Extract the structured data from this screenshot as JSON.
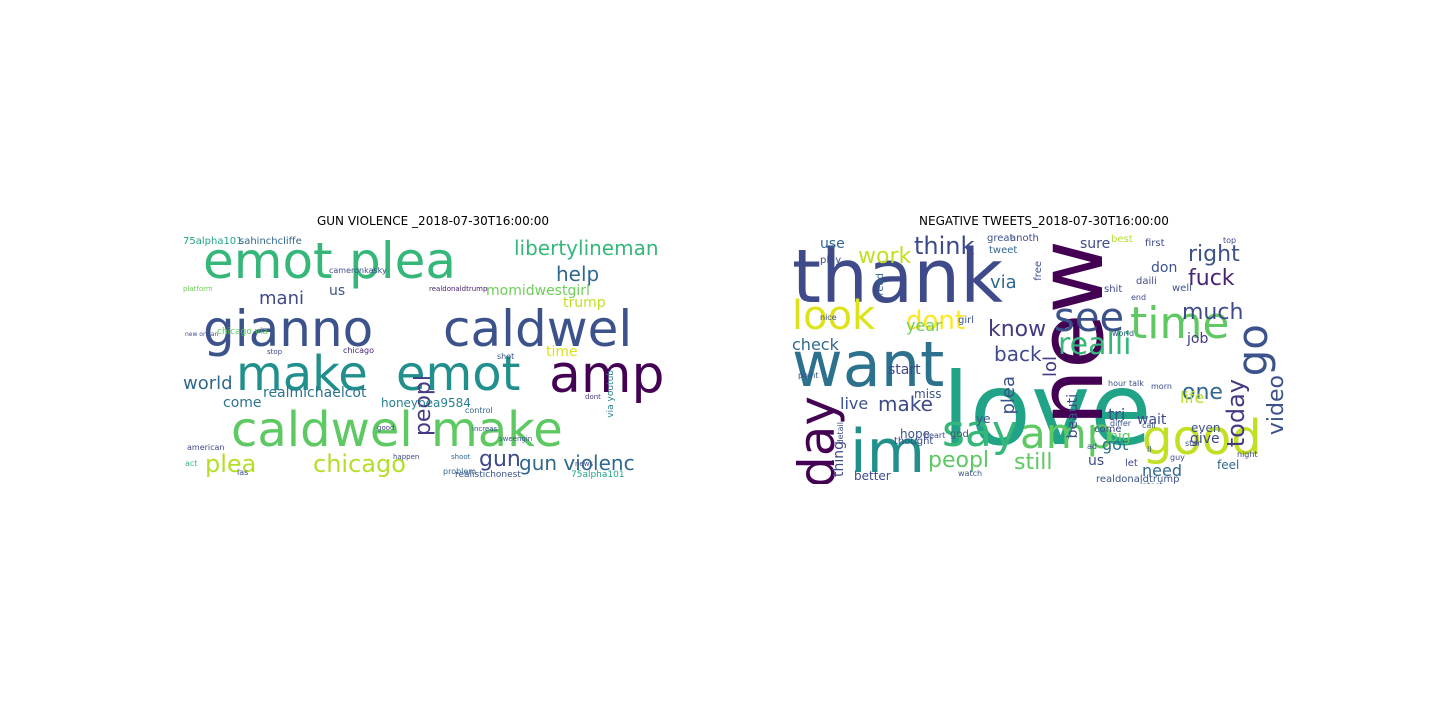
{
  "figure": {
    "panels": [
      {
        "title": "GUN VIOLENCE _2018-07-30T16:00:00",
        "words": [
          {
            "text": "gianno",
            "color": "#3b528b"
          },
          {
            "text": "caldwel",
            "color": "#3b528b"
          },
          {
            "text": "emot",
            "color": "#35b779"
          },
          {
            "text": "plea",
            "color": "#35b779"
          },
          {
            "text": "make",
            "color": "#21908d"
          },
          {
            "text": "emot",
            "color": "#21908d"
          },
          {
            "text": "amp",
            "color": "#440154"
          },
          {
            "text": "caldwel",
            "color": "#5ec962"
          },
          {
            "text": "make",
            "color": "#5ec962"
          },
          {
            "text": "plea",
            "color": "#b5de2b"
          },
          {
            "text": "chicago",
            "color": "#b5de2b"
          },
          {
            "text": "libertylineman",
            "color": "#35b779"
          },
          {
            "text": "help",
            "color": "#31688e"
          },
          {
            "text": "mani",
            "color": "#3e4a89"
          },
          {
            "text": "momidwestgirl",
            "color": "#6ece58"
          },
          {
            "text": "trump",
            "color": "#c2df23"
          },
          {
            "text": "us",
            "color": "#3b528b"
          },
          {
            "text": "peopl",
            "color": "#443983"
          },
          {
            "text": "world",
            "color": "#31688e"
          },
          {
            "text": "realmichaelcot",
            "color": "#2c728e"
          },
          {
            "text": "honeybea9584",
            "color": "#27808e"
          },
          {
            "text": "come",
            "color": "#2c728e"
          },
          {
            "text": "gun",
            "color": "#3e4a89"
          },
          {
            "text": "gun violenc",
            "color": "#31688e"
          },
          {
            "text": "time",
            "color": "#dde318"
          },
          {
            "text": "75alpha101",
            "color": "#20a386"
          },
          {
            "text": "sahinchcliffe",
            "color": "#31688e"
          },
          {
            "text": "cameronkasky",
            "color": "#3e4a89"
          },
          {
            "text": "chicago via",
            "color": "#5ec962"
          },
          {
            "text": "via youtub",
            "color": "#27808e"
          },
          {
            "text": "realistichonest",
            "color": "#3b528b"
          },
          {
            "text": "75alpha101",
            "color": "#20a386"
          },
          {
            "text": "platform",
            "color": "#6ece58"
          },
          {
            "text": "american",
            "color": "#3e4a89"
          },
          {
            "text": "chicago",
            "color": "#482475"
          },
          {
            "text": "shot",
            "color": "#3b528b"
          },
          {
            "text": "control",
            "color": "#31688e"
          },
          {
            "text": "good",
            "color": "#3e4a89"
          },
          {
            "text": "problem",
            "color": "#31688e"
          },
          {
            "text": "increas",
            "color": "#3b528b"
          },
          {
            "text": "happen",
            "color": "#3e4a89"
          },
          {
            "text": "dont",
            "color": "#443983"
          },
          {
            "text": "act",
            "color": "#35b779"
          },
          {
            "text": "ias",
            "color": "#3b528b"
          },
          {
            "text": "stop",
            "color": "#3e4a89"
          },
          {
            "text": "shoot",
            "color": "#31688e"
          },
          {
            "text": "news",
            "color": "#3b528b"
          },
          {
            "text": "new orlean",
            "color": "#3e4a89"
          },
          {
            "text": "realdonaldtrump",
            "color": "#482475"
          },
          {
            "text": "sweengin",
            "color": "#3b528b"
          }
        ]
      },
      {
        "title": "NEGATIVE TWEETS_2018-07-30T16:00:00",
        "words": [
          {
            "text": "love",
            "color": "#20a386"
          },
          {
            "text": "new",
            "color": "#440154"
          },
          {
            "text": "thank",
            "color": "#3e4a89"
          },
          {
            "text": "want",
            "color": "#2c728e"
          },
          {
            "text": "im",
            "color": "#21908d"
          },
          {
            "text": "look",
            "color": "#dde318"
          },
          {
            "text": "see",
            "color": "#3b528b"
          },
          {
            "text": "time",
            "color": "#5ec962"
          },
          {
            "text": "go",
            "color": "#3b528b"
          },
          {
            "text": "good",
            "color": "#c2df23"
          },
          {
            "text": "say",
            "color": "#35b779"
          },
          {
            "text": "amp",
            "color": "#5ec962"
          },
          {
            "text": "day",
            "color": "#440154"
          },
          {
            "text": "work",
            "color": "#c2df23"
          },
          {
            "text": "think",
            "color": "#3e4a89"
          },
          {
            "text": "right",
            "color": "#3b528b"
          },
          {
            "text": "fuck",
            "color": "#482475"
          },
          {
            "text": "much",
            "color": "#3e4a89"
          },
          {
            "text": "dont",
            "color": "#fde725"
          },
          {
            "text": "know",
            "color": "#443983"
          },
          {
            "text": "realli",
            "color": "#35b779"
          },
          {
            "text": "back",
            "color": "#3e4a89"
          },
          {
            "text": "one",
            "color": "#31688e"
          },
          {
            "text": "today",
            "color": "#443983"
          },
          {
            "text": "video",
            "color": "#3b528b"
          },
          {
            "text": "peopl",
            "color": "#5ec962"
          },
          {
            "text": "still",
            "color": "#5ec962"
          },
          {
            "text": "make",
            "color": "#3e4a89"
          },
          {
            "text": "live",
            "color": "#3b528b"
          },
          {
            "text": "check",
            "color": "#31688e"
          },
          {
            "text": "use",
            "color": "#31688e"
          },
          {
            "text": "year",
            "color": "#6ece58"
          },
          {
            "text": "start",
            "color": "#3e4a89"
          },
          {
            "text": "plea",
            "color": "#3b528b"
          },
          {
            "text": "lol",
            "color": "#443983"
          },
          {
            "text": "via",
            "color": "#31688e"
          },
          {
            "text": "sure",
            "color": "#3e4a89"
          },
          {
            "text": "don",
            "color": "#3b528b"
          },
          {
            "text": "life",
            "color": "#b5de2b"
          },
          {
            "text": "tri",
            "color": "#3b528b"
          },
          {
            "text": "got",
            "color": "#2c728e"
          },
          {
            "text": "need",
            "color": "#31688e"
          },
          {
            "text": "us",
            "color": "#3e4a89"
          },
          {
            "text": "give",
            "color": "#3e4a89"
          },
          {
            "text": "even",
            "color": "#3b528b"
          },
          {
            "text": "wait",
            "color": "#3e4a89"
          },
          {
            "text": "job",
            "color": "#443983"
          },
          {
            "text": "feel",
            "color": "#31688e"
          },
          {
            "text": "thing",
            "color": "#3e4a89"
          },
          {
            "text": "miss",
            "color": "#3b528b"
          },
          {
            "text": "better",
            "color": "#3e4a89"
          },
          {
            "text": "hope",
            "color": "#3b528b"
          },
          {
            "text": "beauti",
            "color": "#3e4a89"
          },
          {
            "text": "big",
            "color": "#5ec962"
          },
          {
            "text": "first",
            "color": "#3e4a89"
          },
          {
            "text": "best",
            "color": "#b5de2b"
          },
          {
            "text": "great",
            "color": "#3b528b"
          },
          {
            "text": "tweet",
            "color": "#31688e"
          },
          {
            "text": "daili",
            "color": "#3e4a89"
          },
          {
            "text": "shit",
            "color": "#3e4a89"
          },
          {
            "text": "well",
            "color": "#3b528b"
          },
          {
            "text": "play",
            "color": "#3e4a89"
          },
          {
            "text": "god",
            "color": "#3b528b"
          },
          {
            "text": "girl",
            "color": "#3b528b"
          },
          {
            "text": "come",
            "color": "#3e4a89"
          },
          {
            "text": "realdonaldtrump",
            "color": "#3b528b"
          },
          {
            "text": "let",
            "color": "#3e4a89"
          },
          {
            "text": "read",
            "color": "#31688e"
          },
          {
            "text": "thought",
            "color": "#3e4a89"
          },
          {
            "text": "free",
            "color": "#3b528b"
          },
          {
            "text": "anoth",
            "color": "#3e4a89"
          },
          {
            "text": "top",
            "color": "#3e4a89"
          },
          {
            "text": "ye",
            "color": "#3b528b"
          },
          {
            "text": "nice",
            "color": "#3e4a89"
          },
          {
            "text": "watch",
            "color": "#3b528b"
          },
          {
            "text": "heart",
            "color": "#3e4a89"
          },
          {
            "text": "world",
            "color": "#3b528b"
          },
          {
            "text": "night",
            "color": "#3e4a89"
          },
          {
            "text": "ll",
            "color": "#3b528b"
          },
          {
            "text": "guy",
            "color": "#3e4a89"
          },
          {
            "text": "latest",
            "color": "#3b528b"
          },
          {
            "text": "talk",
            "color": "#3e4a89"
          },
          {
            "text": "differ",
            "color": "#3b528b"
          },
          {
            "text": "morn",
            "color": "#3e4a89"
          },
          {
            "text": "ad",
            "color": "#3b528b"
          },
          {
            "text": "end",
            "color": "#3e4a89"
          },
          {
            "text": "point",
            "color": "#3b528b"
          },
          {
            "text": "detail",
            "color": "#3e4a89"
          },
          {
            "text": "hour",
            "color": "#3b528b"
          },
          {
            "text": "star",
            "color": "#3e4a89"
          },
          {
            "text": "call",
            "color": "#3b528b"
          }
        ]
      }
    ]
  }
}
